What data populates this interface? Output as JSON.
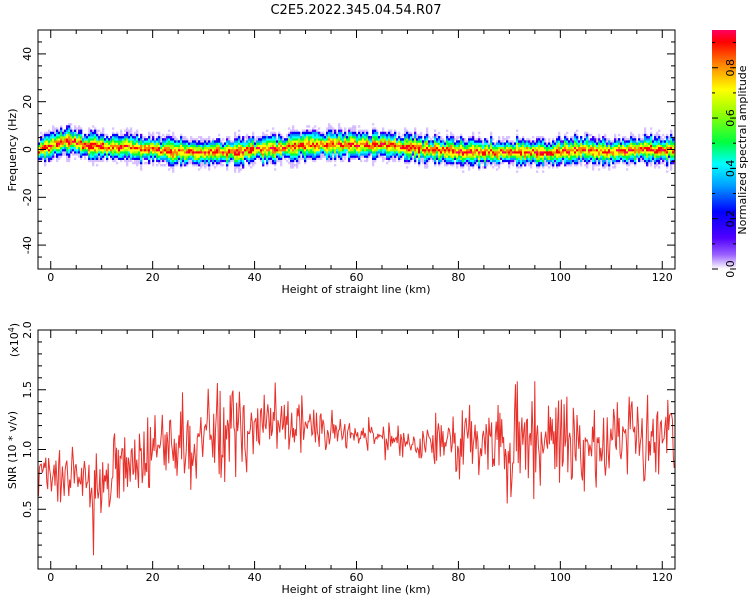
{
  "title": "C2E5.2022.345.04.54.R07",
  "chart_data": [
    {
      "type": "heatmap",
      "xlabel": "Height of straight line (km)",
      "ylabel": "Frequency (Hz)",
      "xlim": [
        -2.5,
        122.5
      ],
      "ylim": [
        -50,
        50
      ],
      "x_ticks": [
        "0",
        "20",
        "40",
        "60",
        "80",
        "100",
        "120"
      ],
      "y_ticks": [
        "40",
        "20",
        "0",
        "-20",
        "-40"
      ],
      "colorbar": {
        "label": "Normalized spectral amplitude",
        "range": [
          0,
          0.95
        ],
        "ticks": [
          "0.0",
          "0.2",
          "0.4",
          "0.6",
          "0.8"
        ],
        "colors": [
          "#ffffff",
          "#5000ff",
          "#0000ff",
          "#00a0ff",
          "#00ffff",
          "#00ff40",
          "#a0ff00",
          "#ffff00",
          "#ff8000",
          "#ff0000",
          "#ff0060"
        ]
      },
      "center_frequency": {
        "x": [
          -2,
          0,
          3,
          6,
          10,
          15,
          20,
          25,
          30,
          35,
          40,
          45,
          50,
          55,
          60,
          65,
          70,
          75,
          80,
          85,
          90,
          95,
          100,
          105,
          110,
          115,
          122
        ],
        "y": [
          0,
          2,
          4,
          2,
          1,
          1,
          0,
          -1,
          -1,
          -1,
          0,
          1,
          2,
          2,
          2,
          2,
          1,
          0,
          -1,
          -1,
          -1,
          -1,
          -1,
          0,
          -1,
          0,
          0
        ]
      }
    },
    {
      "type": "line",
      "xlabel": "Height of straight line (km)",
      "ylabel": "SNR (10 * v/v)",
      "multiplier": "(x10",
      "multiplier_exp": "4",
      "multiplier_close": ")",
      "xlim": [
        -2.5,
        122.5
      ],
      "ylim": [
        0,
        2.0
      ],
      "x_ticks": [
        "0",
        "20",
        "40",
        "60",
        "80",
        "100",
        "120"
      ],
      "y_ticks": [
        "2.0",
        "1.5",
        "1.0",
        "0.5"
      ],
      "series_color": "#e8302a",
      "trend": {
        "x": [
          -2,
          0,
          5,
          10,
          15,
          20,
          25,
          30,
          35,
          40,
          45,
          50,
          55,
          60,
          65,
          70,
          75,
          80,
          85,
          90,
          95,
          100,
          105,
          110,
          115,
          122
        ],
        "mean": [
          0.85,
          0.8,
          0.75,
          0.72,
          0.85,
          0.95,
          1.0,
          1.1,
          1.1,
          1.15,
          1.2,
          1.15,
          1.15,
          1.15,
          1.1,
          1.05,
          1.05,
          1.05,
          1.1,
          1.0,
          1.1,
          1.1,
          1.05,
          1.1,
          1.05,
          1.1
        ],
        "amplitude": [
          0.25,
          0.25,
          0.3,
          0.35,
          0.35,
          0.35,
          0.45,
          0.5,
          0.45,
          0.4,
          0.35,
          0.25,
          0.2,
          0.15,
          0.15,
          0.15,
          0.2,
          0.35,
          0.4,
          0.5,
          0.5,
          0.5,
          0.45,
          0.45,
          0.45,
          0.4
        ]
      }
    }
  ]
}
